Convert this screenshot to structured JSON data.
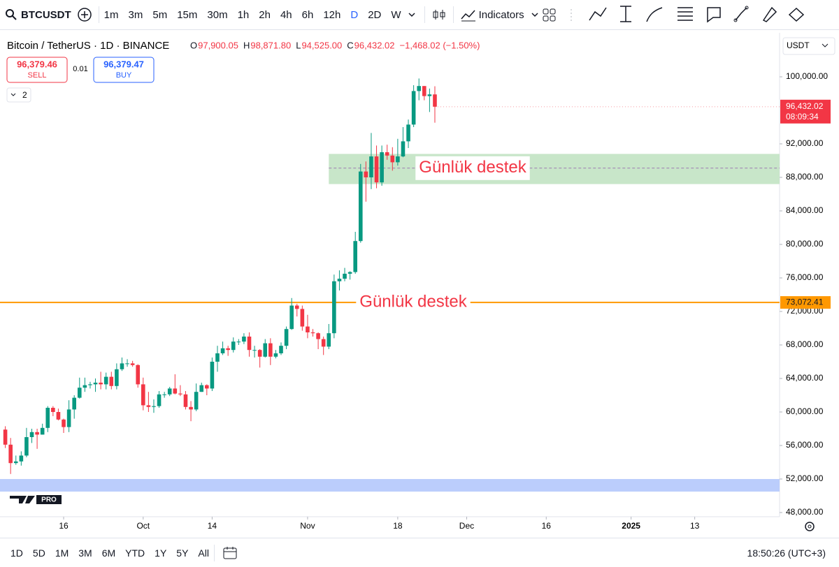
{
  "toolbar": {
    "symbol": "BTCUSDT",
    "intervals": [
      "1m",
      "3m",
      "5m",
      "15m",
      "30m",
      "1h",
      "2h",
      "4h",
      "6h",
      "12h",
      "D",
      "2D",
      "W"
    ],
    "indicators": "Indicators"
  },
  "legend": {
    "title": "Bitcoin / TetherUS · 1D · BINANCE",
    "ohlc": [
      {
        "key": "O",
        "value": "97,900.05"
      },
      {
        "key": "H",
        "value": "98,871.80"
      },
      {
        "key": "L",
        "value": "94,525.00"
      },
      {
        "key": "C",
        "value": "96,432.02"
      }
    ],
    "change": "−1,468.02 (−1.50%)",
    "sell_price": "96,379.46",
    "sell": "SELL",
    "spread": "0.01",
    "buy_price": "96,379.47",
    "buy": "BUY",
    "layers": "2",
    "currency": "USDT"
  },
  "bottom_bar": {
    "ranges": [
      "1D",
      "5D",
      "1M",
      "3M",
      "6M",
      "YTD",
      "1Y",
      "5Y",
      "All"
    ],
    "clock": "18:50:26 (UTC+3)"
  },
  "logo": "PRO",
  "chart_data": {
    "type": "candlestick",
    "up_color": "#089981",
    "down_color": "#f23645",
    "x": [
      "2024-09-05",
      "2024-09-06",
      "2024-09-07",
      "2024-09-08",
      "2024-09-09",
      "2024-09-10",
      "2024-09-11",
      "2024-09-12",
      "2024-09-13",
      "2024-09-14",
      "2024-09-15",
      "2024-09-16",
      "2024-09-17",
      "2024-09-18",
      "2024-09-19",
      "2024-09-20",
      "2024-09-21",
      "2024-09-22",
      "2024-09-23",
      "2024-09-24",
      "2024-09-25",
      "2024-09-26",
      "2024-09-27",
      "2024-09-28",
      "2024-09-29",
      "2024-09-30",
      "2024-10-01",
      "2024-10-02",
      "2024-10-03",
      "2024-10-04",
      "2024-10-05",
      "2024-10-06",
      "2024-10-07",
      "2024-10-08",
      "2024-10-09",
      "2024-10-10",
      "2024-10-11",
      "2024-10-12",
      "2024-10-13",
      "2024-10-14",
      "2024-10-15",
      "2024-10-16",
      "2024-10-17",
      "2024-10-18",
      "2024-10-19",
      "2024-10-20",
      "2024-10-21",
      "2024-10-22",
      "2024-10-23",
      "2024-10-24",
      "2024-10-25",
      "2024-10-26",
      "2024-10-27",
      "2024-10-28",
      "2024-10-29",
      "2024-10-30",
      "2024-10-31",
      "2024-11-01",
      "2024-11-02",
      "2024-11-03",
      "2024-11-04",
      "2024-11-05",
      "2024-11-06",
      "2024-11-07",
      "2024-11-08",
      "2024-11-09",
      "2024-11-10",
      "2024-11-11",
      "2024-11-12",
      "2024-11-13",
      "2024-11-14",
      "2024-11-15",
      "2024-11-16",
      "2024-11-17",
      "2024-11-18",
      "2024-11-19",
      "2024-11-20",
      "2024-11-21",
      "2024-11-22",
      "2024-11-23",
      "2024-11-24",
      "2024-11-25"
    ],
    "open": [
      57900,
      56100,
      53900,
      54100,
      54800,
      57000,
      57600,
      57300,
      58100,
      60500,
      60000,
      59100,
      58200,
      60300,
      61700,
      62900,
      63200,
      63300,
      63500,
      63300,
      64200,
      63100,
      65100,
      65800,
      65800,
      65600,
      63300,
      60800,
      60600,
      60700,
      62100,
      62100,
      62800,
      62200,
      62100,
      60600,
      60300,
      62400,
      63200,
      62800,
      66000,
      67000,
      67600,
      67400,
      68400,
      68400,
      69000,
      67400,
      67400,
      66600,
      68200,
      66600,
      67000,
      67900,
      69900,
      72700,
      72300,
      70200,
      69500,
      69400,
      68700,
      67800,
      69400,
      75600,
      75900,
      76500,
      76700,
      80400,
      88700,
      88000,
      90500,
      87400,
      91000,
      90600,
      89800,
      90500,
      92300,
      94300,
      98300,
      98900,
      97700,
      97900.05
    ],
    "high": [
      58300,
      56900,
      54800,
      55300,
      58100,
      58000,
      58000,
      58600,
      60700,
      60700,
      60400,
      59200,
      61400,
      62000,
      64100,
      64100,
      63600,
      64000,
      64800,
      64700,
      64800,
      65800,
      66500,
      66300,
      66100,
      65700,
      64100,
      62400,
      61500,
      62500,
      62400,
      63000,
      64500,
      63200,
      62500,
      61300,
      63400,
      63500,
      63300,
      66500,
      67900,
      68400,
      67900,
      68900,
      68700,
      69400,
      69500,
      67900,
      67500,
      68700,
      68800,
      67400,
      68300,
      70200,
      73600,
      72900,
      72700,
      71600,
      69900,
      69500,
      69000,
      70500,
      76400,
      76900,
      77200,
      76800,
      81500,
      89600,
      89900,
      93300,
      91800,
      91800,
      91900,
      91600,
      92600,
      94000,
      94900,
      99000,
      99800,
      98900,
      98600,
      98871.8
    ],
    "low": [
      55700,
      52600,
      53700,
      53600,
      54600,
      56300,
      55600,
      57300,
      57600,
      59500,
      59000,
      57500,
      57600,
      59200,
      61600,
      62400,
      62800,
      62400,
      62700,
      62700,
      62700,
      62700,
      64900,
      65400,
      65400,
      62900,
      60200,
      60000,
      59900,
      60500,
      61700,
      61900,
      62100,
      61900,
      60300,
      58900,
      60100,
      62400,
      62000,
      62500,
      64800,
      66800,
      66700,
      67100,
      68000,
      68100,
      66600,
      66500,
      65300,
      66500,
      65600,
      66400,
      66800,
      67500,
      69800,
      71400,
      69700,
      68800,
      69000,
      67500,
      66800,
      67500,
      68800,
      74500,
      75600,
      75800,
      76500,
      80200,
      85100,
      86600,
      86700,
      87000,
      90100,
      88800,
      89400,
      90400,
      91500,
      94000,
      97200,
      97200,
      95800,
      94525
    ],
    "close": [
      56100,
      53900,
      54100,
      54800,
      57000,
      57600,
      57300,
      58100,
      60500,
      60000,
      59100,
      58200,
      60300,
      61700,
      62900,
      63200,
      63300,
      63500,
      63300,
      64200,
      63100,
      65100,
      65800,
      65800,
      65600,
      63300,
      60800,
      60600,
      60700,
      62100,
      62100,
      62800,
      62200,
      62100,
      60600,
      60300,
      62400,
      63200,
      62800,
      66000,
      67000,
      67600,
      67400,
      68400,
      68400,
      69000,
      67400,
      67400,
      66600,
      68200,
      66600,
      67000,
      67900,
      69900,
      72700,
      72300,
      70200,
      69500,
      69400,
      68700,
      67800,
      69400,
      75600,
      75900,
      76500,
      76700,
      80400,
      88700,
      88000,
      90500,
      87400,
      91000,
      90600,
      89800,
      90500,
      92300,
      94300,
      98300,
      98900,
      97700,
      97900,
      96432.02
    ],
    "last_label": "96,432.02",
    "countdown": "08:09:34",
    "xlim": [
      "2024-09-04",
      "2025-01-29"
    ],
    "xticks": [
      {
        "value": "2024-09-16",
        "label": "16"
      },
      {
        "value": "2024-10-01",
        "label": "Oct"
      },
      {
        "value": "2024-10-14",
        "label": "14"
      },
      {
        "value": "2024-11-01",
        "label": "Nov"
      },
      {
        "value": "2024-11-18",
        "label": "18"
      },
      {
        "value": "2024-12-01",
        "label": "Dec"
      },
      {
        "value": "2024-12-16",
        "label": "16"
      },
      {
        "value": "2025-01-01",
        "label": "2025"
      },
      {
        "value": "2025-01-13",
        "label": "13"
      }
    ],
    "ylim": [
      47500,
      105250
    ],
    "yticks": [
      {
        "value": 48000,
        "label": "48,000.00"
      },
      {
        "value": 52000,
        "label": "52,000.00"
      },
      {
        "value": 56000,
        "label": "56,000.00"
      },
      {
        "value": 60000,
        "label": "60,000.00"
      },
      {
        "value": 64000,
        "label": "64,000.00"
      },
      {
        "value": 68000,
        "label": "68,000.00"
      },
      {
        "value": 72000,
        "label": "72,000.00"
      },
      {
        "value": 76000,
        "label": "76,000.00"
      },
      {
        "value": 80000,
        "label": "80,000.00"
      },
      {
        "value": 84000,
        "label": "84,000.00"
      },
      {
        "value": 88000,
        "label": "88,000.00"
      },
      {
        "value": 92000,
        "label": "92,000.00"
      },
      {
        "value": 100000,
        "label": "100,000.00"
      }
    ],
    "hline": {
      "value": 73072.41,
      "label": "73,072.41",
      "text": "Günlük destek",
      "color": "#ff9800"
    },
    "zone": {
      "from": 87200,
      "to": 90800,
      "mid": 89100,
      "start": "2024-11-05",
      "text": "Günlük destek",
      "color": "#c8e6c9"
    }
  }
}
